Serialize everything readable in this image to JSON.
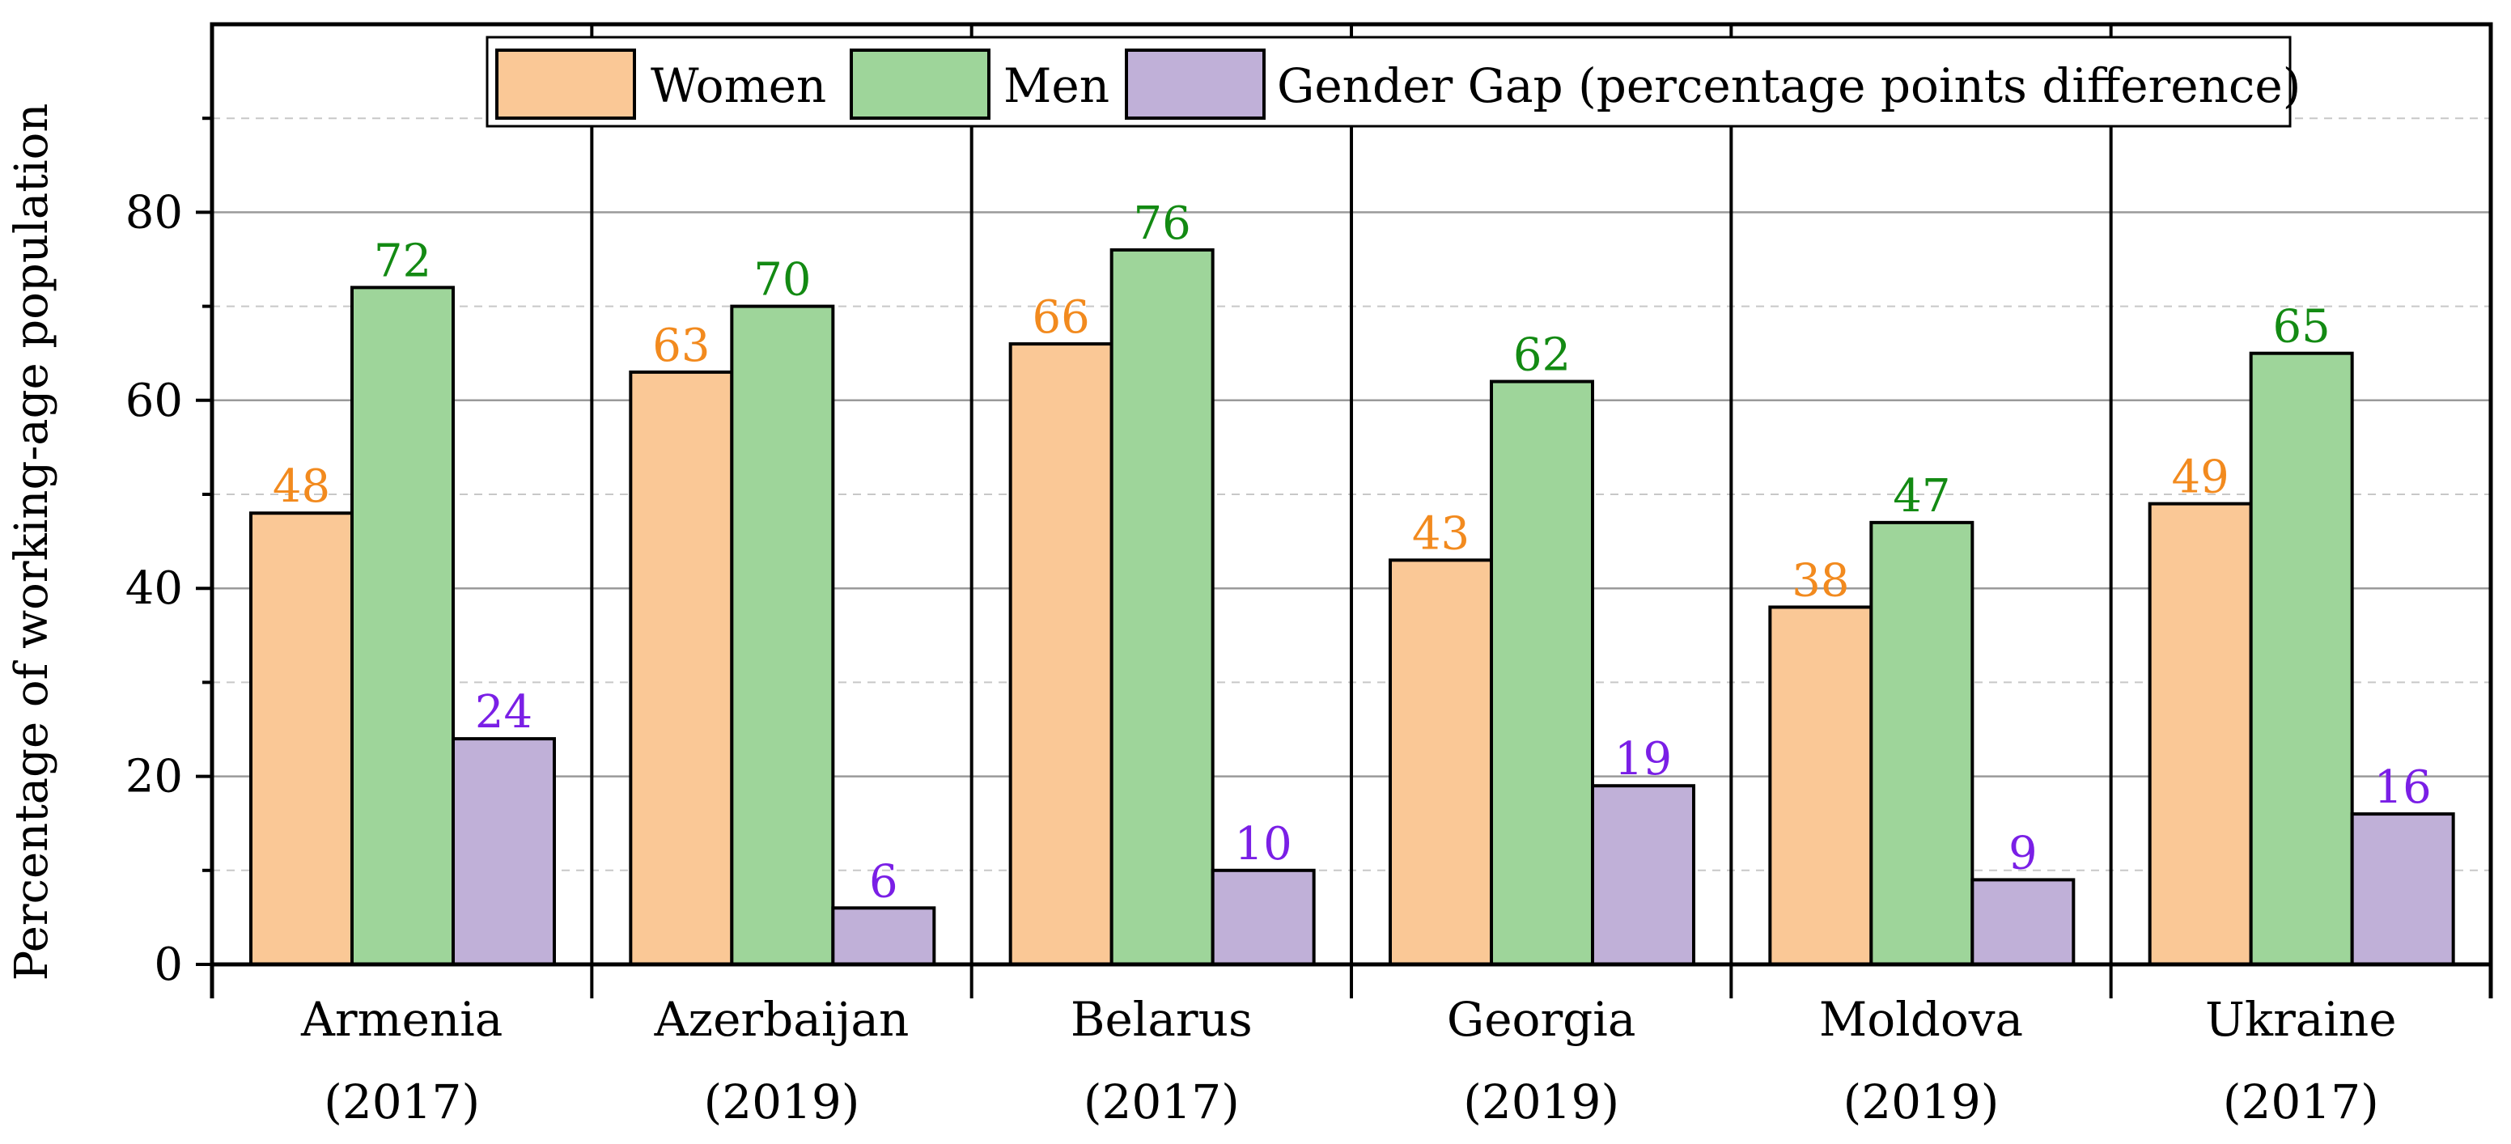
{
  "chart_data": {
    "type": "bar",
    "title": "",
    "xlabel": "",
    "ylabel": "Percentage of working-age population",
    "ylim": [
      0,
      100
    ],
    "yticks": [
      0,
      20,
      40,
      60,
      80
    ],
    "categories": [
      {
        "name": "Armenia",
        "year": "(2017)"
      },
      {
        "name": "Azerbaijan",
        "year": "(2019)"
      },
      {
        "name": "Belarus",
        "year": "(2017)"
      },
      {
        "name": "Georgia",
        "year": "(2019)"
      },
      {
        "name": "Moldova",
        "year": "(2019)"
      },
      {
        "name": "Ukraine",
        "year": "(2017)"
      }
    ],
    "series": [
      {
        "name": "Women",
        "values": [
          48,
          63,
          66,
          43,
          38,
          49
        ],
        "color": "#FAC896",
        "label_color": "#F28A1E"
      },
      {
        "name": "Men",
        "values": [
          72,
          70,
          76,
          62,
          47,
          65
        ],
        "color": "#9ED59A",
        "label_color": "#138A13"
      },
      {
        "name": "Gender Gap (percentage points difference)",
        "values": [
          24,
          6,
          10,
          19,
          9,
          16
        ],
        "color": "#C0B0D8",
        "label_color": "#7A1FE6"
      }
    ],
    "legend": "top-center",
    "grid": true
  }
}
